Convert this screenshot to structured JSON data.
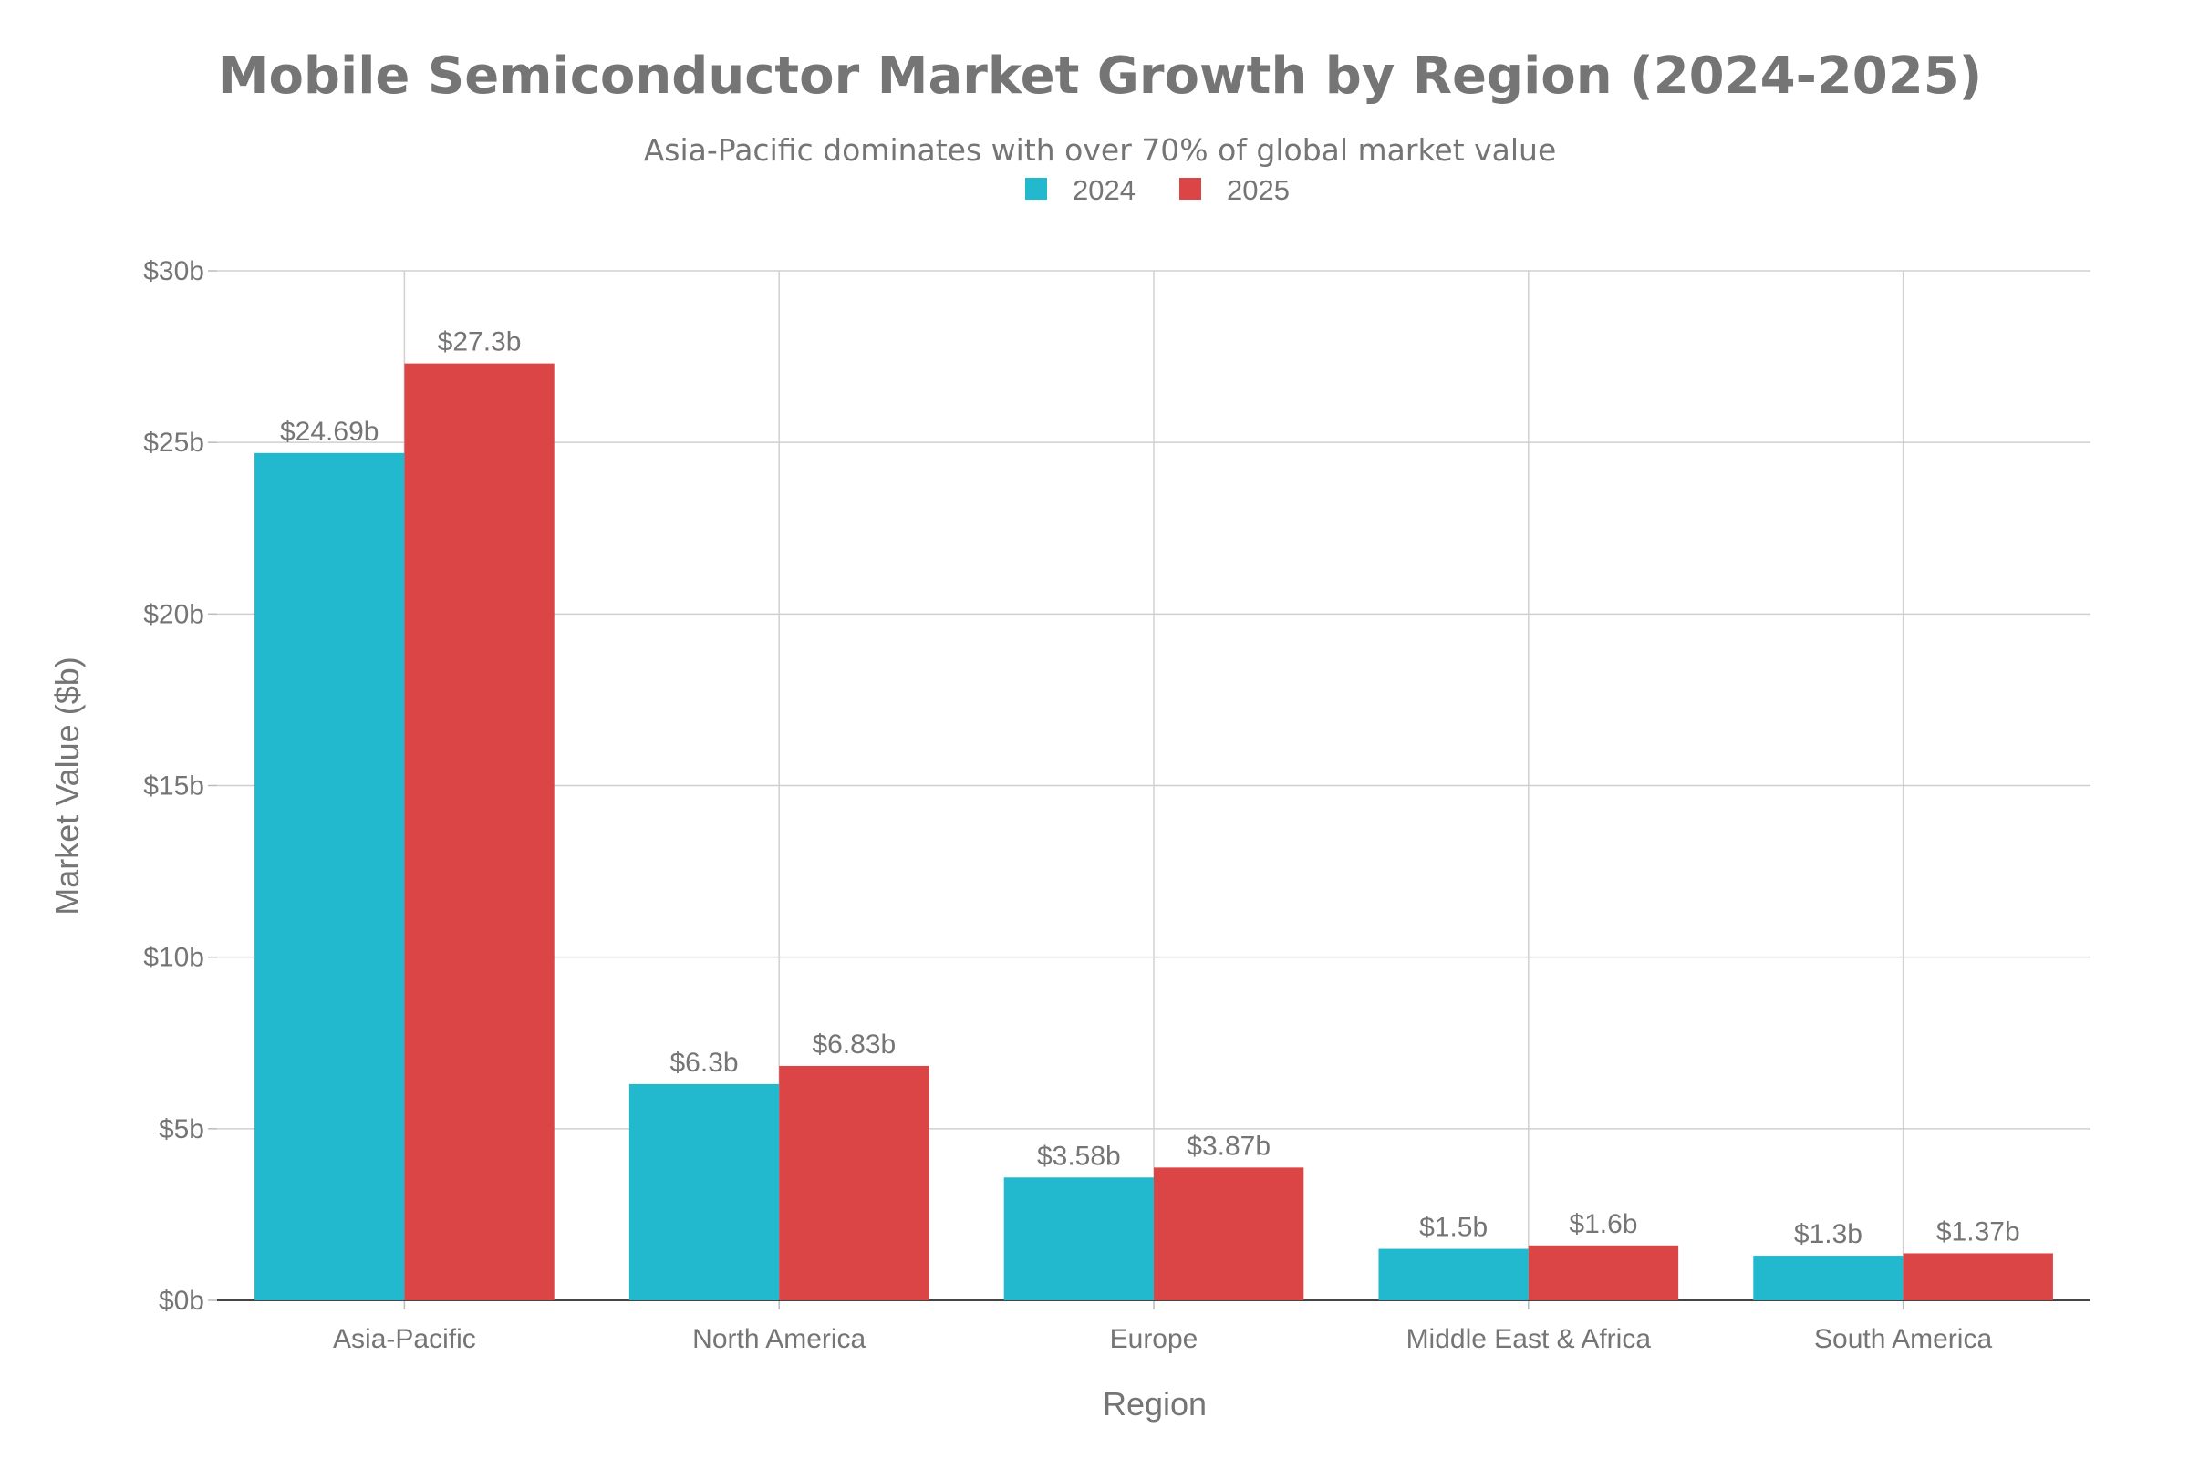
{
  "chart_data": {
    "type": "bar",
    "title": "Mobile Semiconductor Market Growth by Region (2024-2025)",
    "subtitle": "Asia-Pacific dominates with over 70% of global market value",
    "xlabel": "Region",
    "ylabel": "Market Value ($b)",
    "categories": [
      "Asia-Pacific",
      "North America",
      "Europe",
      "Middle East & Africa",
      "South America"
    ],
    "series": [
      {
        "name": "2024",
        "color": "#22b8cd",
        "values": [
          24.69,
          6.3,
          3.58,
          1.5,
          1.3
        ],
        "labels": [
          "$24.69b",
          "$6.3b",
          "$3.58b",
          "$1.5b",
          "$1.3b"
        ]
      },
      {
        "name": "2025",
        "color": "#db4545",
        "values": [
          27.3,
          6.83,
          3.87,
          1.6,
          1.37
        ],
        "labels": [
          "$27.3b",
          "$6.83b",
          "$3.87b",
          "$1.6b",
          "$1.37b"
        ]
      }
    ],
    "ylim": [
      0,
      30
    ],
    "yticks": [
      0,
      5,
      10,
      15,
      20,
      25,
      30
    ],
    "ytick_labels": [
      "$0b",
      "$5b",
      "$10b",
      "$15b",
      "$20b",
      "$25b",
      "$30b"
    ],
    "grid": true,
    "legend_placement": "top-center"
  }
}
